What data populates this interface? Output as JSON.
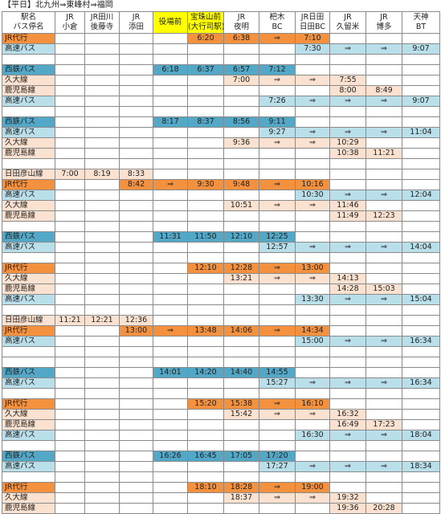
{
  "title": "【平日】北九州⇒東峰村⇒福岡",
  "header": [
    {
      "lines": [
        "駅名",
        "バス停名"
      ]
    },
    {
      "lines": [
        "JR",
        "小倉"
      ]
    },
    {
      "lines": [
        "JR田川",
        "後藤寺"
      ]
    },
    {
      "lines": [
        "JR",
        "添田"
      ]
    },
    {
      "lines": [
        "役場前"
      ],
      "fill": "#ffff00"
    },
    {
      "lines": [
        "宝珠山前",
        "(大行司駅)"
      ],
      "fill": "#ffff00"
    },
    {
      "lines": [
        "JR",
        "夜明"
      ]
    },
    {
      "lines": [
        "杷木",
        "BC"
      ]
    },
    {
      "lines": [
        "JR日田",
        "日田BC"
      ]
    },
    {
      "lines": [
        "JR",
        "久留米"
      ]
    },
    {
      "lines": [
        "JR",
        "博多"
      ]
    },
    {
      "lines": [
        "天神",
        "BT"
      ]
    }
  ],
  "rows": [
    {
      "cells": [
        "JR代行",
        null,
        null,
        null,
        null,
        "6:20",
        "6:38",
        "⇒",
        "7:10",
        null,
        null,
        null
      ],
      "fill": "#f4913e"
    },
    {
      "cells": [
        "高速バス",
        null,
        null,
        null,
        null,
        null,
        null,
        null,
        "7:30",
        "⇒",
        "⇒",
        "9:07"
      ],
      "fill": "#b9dfea"
    },
    {
      "cells": []
    },
    {
      "cells": [
        "西鉄バス",
        null,
        null,
        null,
        "6:18",
        "6:37",
        "6:57",
        "7:12",
        null,
        null,
        null,
        null
      ],
      "fill": "#52a8c6"
    },
    {
      "cells": [
        "久大線",
        null,
        null,
        null,
        null,
        null,
        "7:00",
        "⇒",
        "⇒",
        "7:55",
        null,
        null
      ],
      "fill": "#fbe2d0"
    },
    {
      "cells": [
        "鹿児島線",
        null,
        null,
        null,
        null,
        null,
        null,
        null,
        null,
        "8:00",
        "8:49",
        null
      ],
      "fill": "#fbe2d0"
    },
    {
      "cells": [
        "高速バス",
        null,
        null,
        null,
        null,
        null,
        null,
        "7:26",
        "⇒",
        "⇒",
        "⇒",
        "9:07"
      ],
      "fill": "#b9dfea"
    },
    {
      "cells": []
    },
    {
      "cells": [
        "西鉄バス",
        null,
        null,
        null,
        "8:17",
        "8:37",
        "8:56",
        "9:11",
        null,
        null,
        null,
        null
      ],
      "fill": "#52a8c6"
    },
    {
      "cells": [
        "高速バス",
        null,
        null,
        null,
        null,
        null,
        null,
        "9:27",
        "⇒",
        "⇒",
        "⇒",
        "11:04"
      ],
      "fill": "#b9dfea"
    },
    {
      "cells": [
        "久大線",
        null,
        null,
        null,
        null,
        null,
        "9:36",
        "⇒",
        "⇒",
        "10:29",
        null,
        null
      ],
      "fill": "#fbe2d0"
    },
    {
      "cells": [
        "鹿児島線",
        null,
        null,
        null,
        null,
        null,
        null,
        null,
        null,
        "10:38",
        "11:21",
        null
      ],
      "fill": "#fbe2d0"
    },
    {
      "cells": []
    },
    {
      "cells": [
        "日田彦山線",
        "7:00",
        "8:19",
        "8:33",
        null,
        null,
        null,
        null,
        null,
        null,
        null,
        null
      ],
      "fill": "#fbe2d0"
    },
    {
      "cells": [
        "JR代行",
        null,
        null,
        "8:42",
        "⇒",
        "9:30",
        "9:48",
        "⇒",
        "10:16",
        null,
        null,
        null
      ],
      "fill": "#f4913e"
    },
    {
      "cells": [
        "高速バス",
        null,
        null,
        null,
        null,
        null,
        null,
        null,
        "10:30",
        "⇒",
        "⇒",
        "12:04"
      ],
      "fill": "#b9dfea"
    },
    {
      "cells": [
        "久大線",
        null,
        null,
        null,
        null,
        null,
        "10:51",
        "⇒",
        "⇒",
        "11:46",
        null,
        null
      ],
      "fill": "#fbe2d0"
    },
    {
      "cells": [
        "鹿児島線",
        null,
        null,
        null,
        null,
        null,
        null,
        null,
        null,
        "11:49",
        "12:23",
        null
      ],
      "fill": "#fbe2d0"
    },
    {
      "cells": []
    },
    {
      "cells": [
        "西鉄バス",
        null,
        null,
        null,
        "11:31",
        "11:50",
        "12:10",
        "12:25",
        null,
        null,
        null,
        null
      ],
      "fill": "#52a8c6"
    },
    {
      "cells": [
        "高速バス",
        null,
        null,
        null,
        null,
        null,
        null,
        "12:57",
        "⇒",
        "⇒",
        "⇒",
        "14:04"
      ],
      "fill": "#b9dfea"
    },
    {
      "cells": []
    },
    {
      "cells": [
        "JR代行",
        null,
        null,
        null,
        null,
        "12:10",
        "12:28",
        "⇒",
        "13:00",
        null,
        null,
        null
      ],
      "fill": "#f4913e"
    },
    {
      "cells": [
        "久大線",
        null,
        null,
        null,
        null,
        null,
        "13:21",
        "⇒",
        "⇒",
        "14:13",
        null,
        null
      ],
      "fill": "#fbe2d0"
    },
    {
      "cells": [
        "鹿児島線",
        null,
        null,
        null,
        null,
        null,
        null,
        null,
        null,
        "14:28",
        "15:03",
        null
      ],
      "fill": "#fbe2d0"
    },
    {
      "cells": [
        "高速バス",
        null,
        null,
        null,
        null,
        null,
        null,
        null,
        "13:30",
        "⇒",
        "⇒",
        "15:04"
      ],
      "fill": "#b9dfea"
    },
    {
      "cells": []
    },
    {
      "cells": [
        "日田彦山線",
        "11:21",
        "12:21",
        "12:36",
        null,
        null,
        null,
        null,
        null,
        null,
        null,
        null
      ],
      "fill": "#fbe2d0"
    },
    {
      "cells": [
        "JR代行",
        null,
        null,
        "13:00",
        "⇒",
        "13:48",
        "14:06",
        "⇒",
        "14:34",
        null,
        null,
        null
      ],
      "fill": "#f4913e"
    },
    {
      "cells": [
        "高速バス",
        null,
        null,
        null,
        null,
        null,
        null,
        null,
        "15:00",
        "⇒",
        "⇒",
        "16:34"
      ],
      "fill": "#b9dfea"
    },
    {
      "cells": []
    },
    {
      "cells": []
    },
    {
      "cells": [
        "西鉄バス",
        null,
        null,
        null,
        "14:01",
        "14:20",
        "14:40",
        "14:55",
        null,
        null,
        null,
        null
      ],
      "fill": "#52a8c6"
    },
    {
      "cells": [
        "高速バス",
        null,
        null,
        null,
        null,
        null,
        null,
        "15:27",
        "⇒",
        "⇒",
        "⇒",
        "16:34"
      ],
      "fill": "#b9dfea"
    },
    {
      "cells": []
    },
    {
      "cells": [
        "JR代行",
        null,
        null,
        null,
        null,
        "15:20",
        "15:38",
        "⇒",
        "16:10",
        null,
        null,
        null
      ],
      "fill": "#f4913e"
    },
    {
      "cells": [
        "久大線",
        null,
        null,
        null,
        null,
        null,
        "15:42",
        "⇒",
        "⇒",
        "16:32",
        null,
        null
      ],
      "fill": "#fbe2d0"
    },
    {
      "cells": [
        "鹿児島線",
        null,
        null,
        null,
        null,
        null,
        null,
        null,
        null,
        "16:49",
        "17:23",
        null
      ],
      "fill": "#fbe2d0"
    },
    {
      "cells": [
        "高速バス",
        null,
        null,
        null,
        null,
        null,
        null,
        null,
        "16:30",
        "⇒",
        "⇒",
        "18:04"
      ],
      "fill": "#b9dfea"
    },
    {
      "cells": []
    },
    {
      "cells": [
        "西鉄バス",
        null,
        null,
        null,
        "16:26",
        "16:45",
        "17:05",
        "17:20",
        null,
        null,
        null,
        null
      ],
      "fill": "#52a8c6"
    },
    {
      "cells": [
        "高速バス",
        null,
        null,
        null,
        null,
        null,
        null,
        "17:27",
        "⇒",
        "⇒",
        "⇒",
        "18:34"
      ],
      "fill": "#b9dfea"
    },
    {
      "cells": []
    },
    {
      "cells": [
        "JR代行",
        null,
        null,
        null,
        null,
        "18:10",
        "18:28",
        "⇒",
        "19:00",
        null,
        null,
        null
      ],
      "fill": "#f4913e"
    },
    {
      "cells": [
        "久大線",
        null,
        null,
        null,
        null,
        null,
        "18:37",
        "⇒",
        "⇒",
        "19:32",
        null,
        null
      ],
      "fill": "#fbe2d0"
    },
    {
      "cells": [
        "鹿児島線",
        null,
        null,
        null,
        null,
        null,
        null,
        null,
        null,
        "19:36",
        "20:28",
        null
      ],
      "fill": "#fbe2d0"
    }
  ]
}
